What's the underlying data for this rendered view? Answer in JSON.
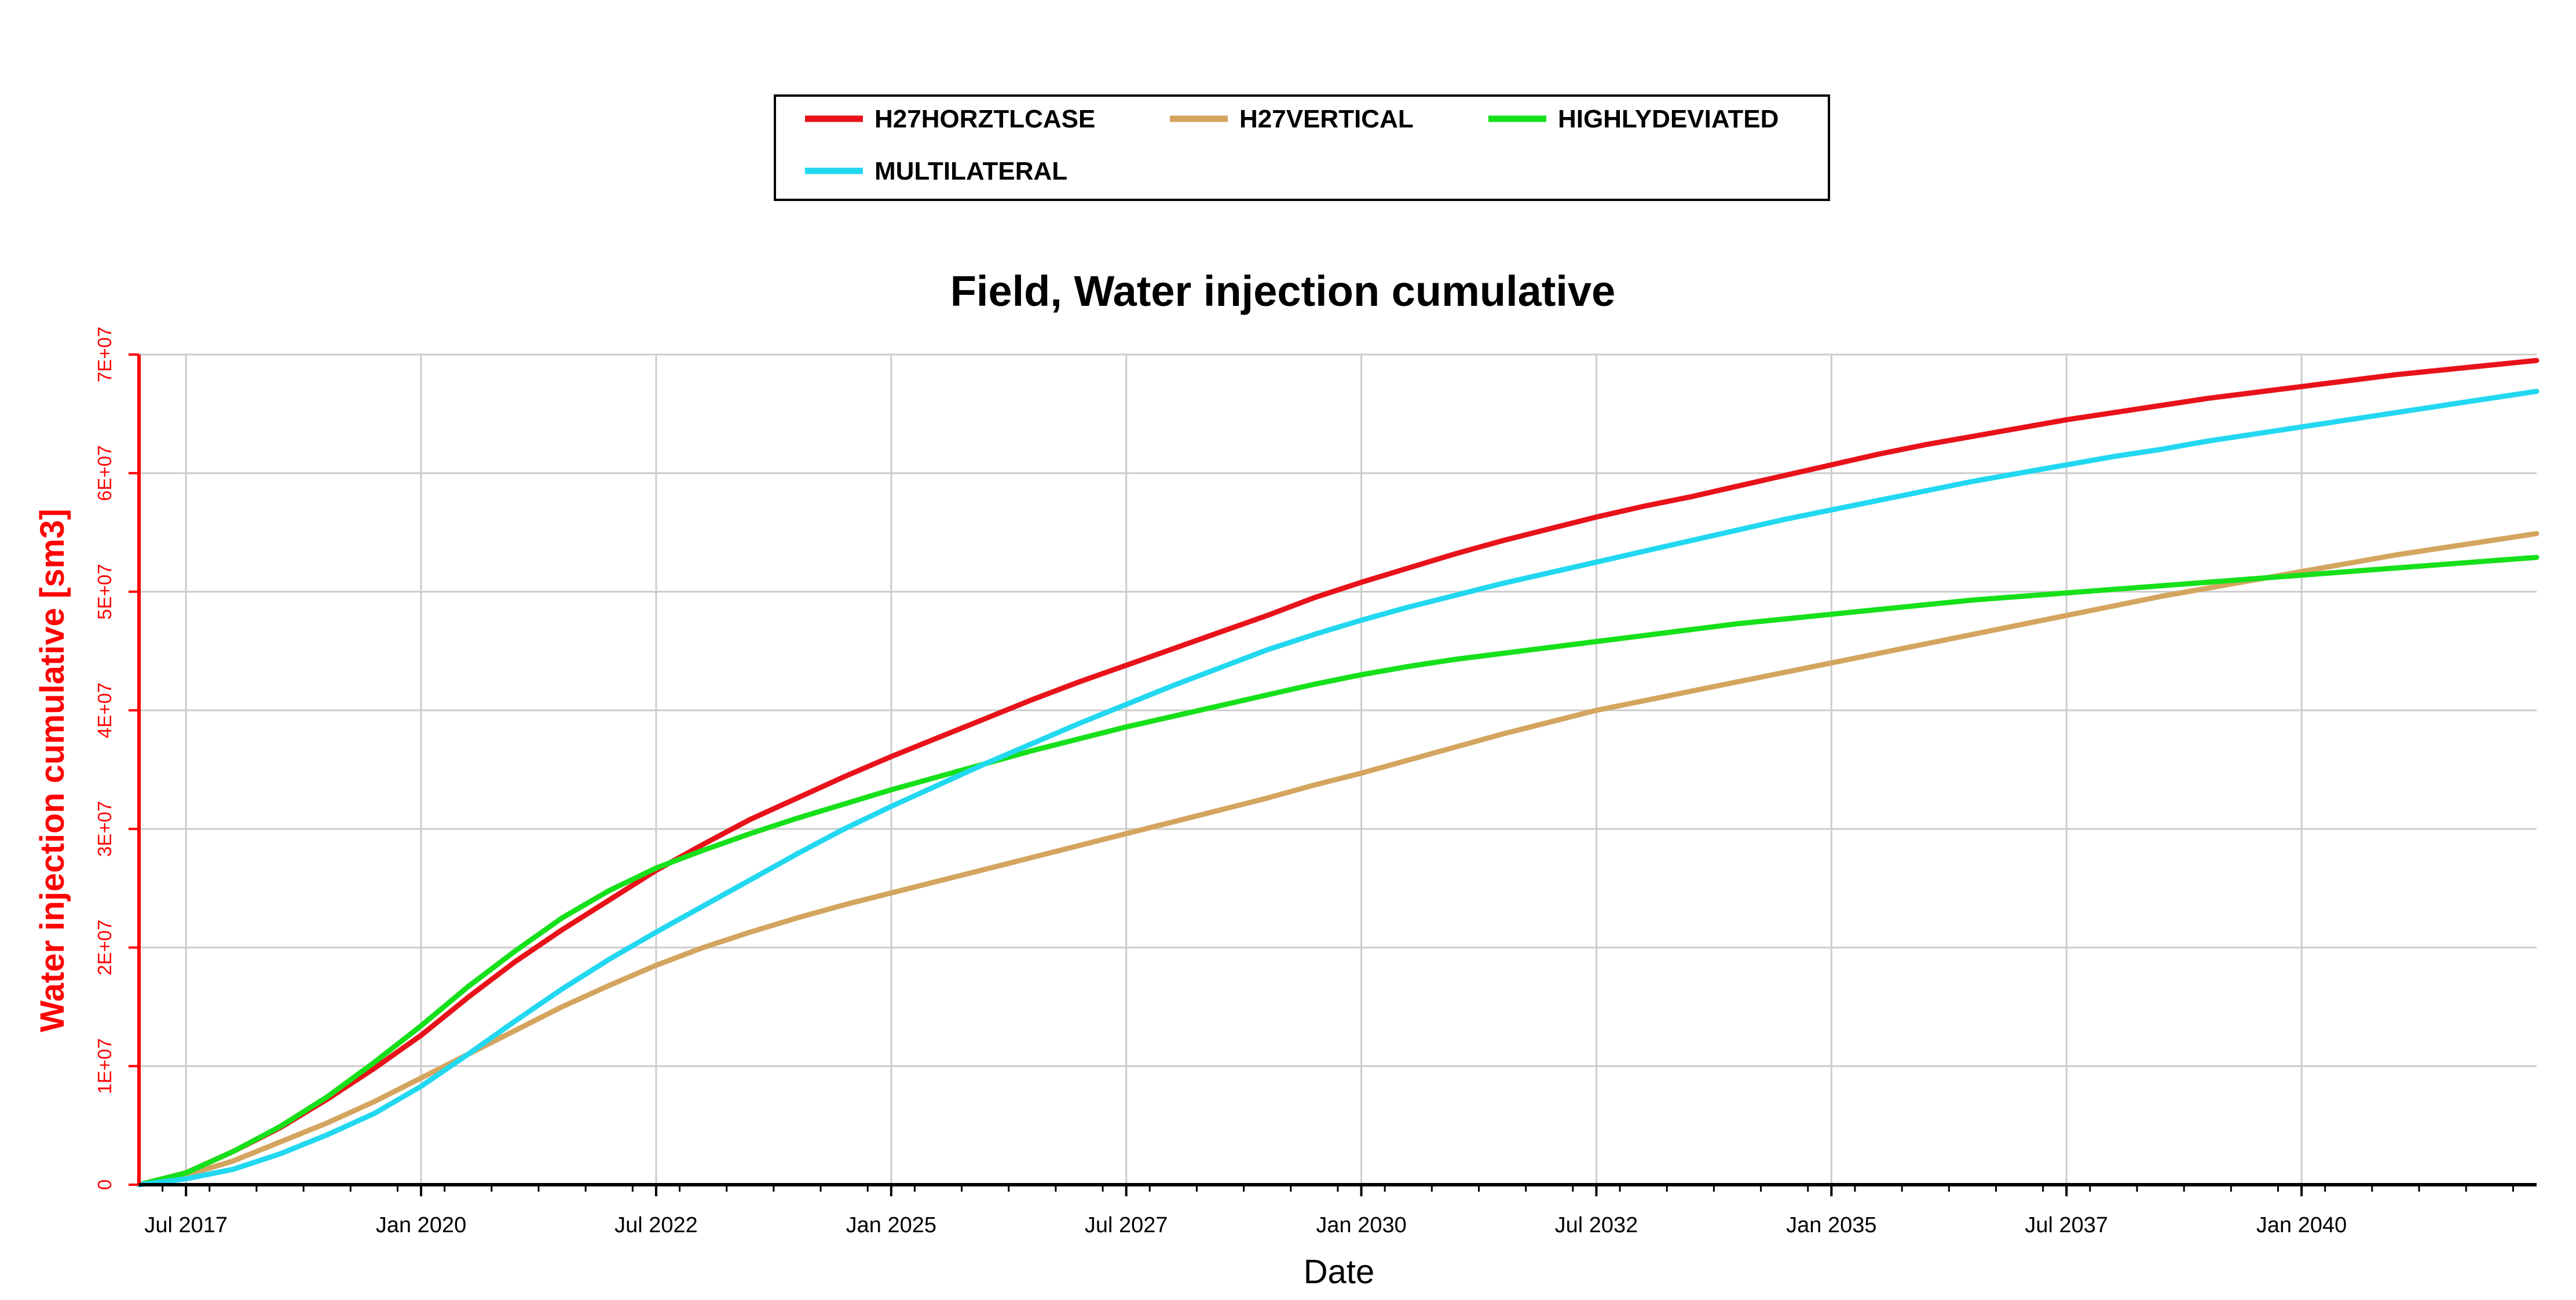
{
  "chart_data": {
    "type": "line",
    "title": "Field, Water injection cumulative",
    "xlabel": "Date",
    "ylabel": "Water injection cumulative [sm3]",
    "axis_color": "#ff0000",
    "grid_color": "#cccccc",
    "grid": true,
    "legend_position": "top-center",
    "x_domain": [
      2017.0,
      2042.5
    ],
    "ylim": [
      0,
      70000000
    ],
    "x_ticks": [
      {
        "label": "Jul 2017",
        "value": 2017.5
      },
      {
        "label": "Jan 2020",
        "value": 2020.0
      },
      {
        "label": "Jul 2022",
        "value": 2022.5
      },
      {
        "label": "Jan 2025",
        "value": 2025.0
      },
      {
        "label": "Jul 2027",
        "value": 2027.5
      },
      {
        "label": "Jan 2030",
        "value": 2030.0
      },
      {
        "label": "Jul 2032",
        "value": 2032.5
      },
      {
        "label": "Jan 2035",
        "value": 2035.0
      },
      {
        "label": "Jul 2037",
        "value": 2037.5
      },
      {
        "label": "Jan 2040",
        "value": 2040.0
      }
    ],
    "y_ticks": [
      {
        "label": "0",
        "value": 0
      },
      {
        "label": "1E+07",
        "value": 10000000
      },
      {
        "label": "2E+07",
        "value": 20000000
      },
      {
        "label": "3E+07",
        "value": 30000000
      },
      {
        "label": "4E+07",
        "value": 40000000
      },
      {
        "label": "5E+07",
        "value": 50000000
      },
      {
        "label": "6E+07",
        "value": 60000000
      },
      {
        "label": "7E+07",
        "value": 70000000
      }
    ],
    "x": [
      2017.0,
      2017.5,
      2018.0,
      2018.5,
      2019.0,
      2019.5,
      2020.0,
      2020.5,
      2021.0,
      2021.5,
      2022.0,
      2022.5,
      2023.0,
      2023.5,
      2024.0,
      2024.5,
      2025.0,
      2025.5,
      2026.0,
      2026.5,
      2027.0,
      2027.5,
      2028.0,
      2028.5,
      2029.0,
      2029.5,
      2030.0,
      2030.5,
      2031.0,
      2031.5,
      2032.0,
      2032.5,
      2033.0,
      2033.5,
      2034.0,
      2034.5,
      2035.0,
      2035.5,
      2036.0,
      2036.5,
      2037.0,
      2037.5,
      2038.0,
      2038.5,
      2039.0,
      2039.5,
      2040.0,
      2040.5,
      2041.0,
      2041.5,
      2042.0,
      2042.5
    ],
    "series": [
      {
        "name": "H27HORZTLCASE",
        "color": "#e8121a",
        "values": [
          0,
          1000000,
          2800000,
          4800000,
          7200000,
          9800000,
          12600000,
          15800000,
          18800000,
          21500000,
          24000000,
          26500000,
          28700000,
          30800000,
          32600000,
          34400000,
          36100000,
          37700000,
          39300000,
          40900000,
          42400000,
          43800000,
          45200000,
          46600000,
          48000000,
          49500000,
          50800000,
          52000000,
          53200000,
          54300000,
          55300000,
          56300000,
          57200000,
          58000000,
          58900000,
          59800000,
          60700000,
          61600000,
          62400000,
          63100000,
          63800000,
          64500000,
          65100000,
          65700000,
          66300000,
          66800000,
          67300000,
          67800000,
          68300000,
          68700000,
          69100000,
          69500000
        ]
      },
      {
        "name": "H27VERTICAL",
        "color": "#d4a55f",
        "values": [
          0,
          800000,
          2000000,
          3600000,
          5200000,
          7000000,
          9000000,
          11000000,
          13000000,
          15000000,
          16800000,
          18500000,
          20000000,
          21300000,
          22500000,
          23600000,
          24600000,
          25600000,
          26600000,
          27600000,
          28600000,
          29600000,
          30600000,
          31600000,
          32600000,
          33700000,
          34700000,
          35800000,
          36900000,
          38000000,
          39000000,
          40000000,
          40800000,
          41600000,
          42400000,
          43200000,
          44000000,
          44800000,
          45600000,
          46400000,
          47200000,
          48000000,
          48800000,
          49600000,
          50300000,
          51000000,
          51700000,
          52400000,
          53100000,
          53700000,
          54300000,
          54900000
        ]
      },
      {
        "name": "HIGHLYDEVIATED",
        "color": "#16e01a",
        "values": [
          0,
          1000000,
          2800000,
          4900000,
          7400000,
          10300000,
          13400000,
          16700000,
          19700000,
          22500000,
          24800000,
          26700000,
          28200000,
          29600000,
          30900000,
          32100000,
          33300000,
          34400000,
          35500000,
          36600000,
          37600000,
          38600000,
          39500000,
          40400000,
          41300000,
          42200000,
          43000000,
          43700000,
          44300000,
          44800000,
          45300000,
          45800000,
          46300000,
          46800000,
          47300000,
          47700000,
          48100000,
          48500000,
          48900000,
          49300000,
          49600000,
          49900000,
          50200000,
          50500000,
          50800000,
          51100000,
          51400000,
          51700000,
          52000000,
          52300000,
          52600000,
          52900000
        ]
      },
      {
        "name": "MULTILATERAL",
        "color": "#22d8f0",
        "values": [
          0,
          500000,
          1300000,
          2600000,
          4200000,
          6000000,
          8300000,
          11000000,
          13800000,
          16500000,
          19000000,
          21300000,
          23500000,
          25700000,
          27900000,
          30000000,
          31900000,
          33700000,
          35500000,
          37200000,
          38900000,
          40500000,
          42100000,
          43600000,
          45100000,
          46400000,
          47600000,
          48700000,
          49700000,
          50700000,
          51600000,
          52500000,
          53400000,
          54300000,
          55200000,
          56100000,
          56900000,
          57700000,
          58500000,
          59300000,
          60000000,
          60700000,
          61400000,
          62000000,
          62700000,
          63300000,
          63900000,
          64500000,
          65100000,
          65700000,
          66300000,
          66900000
        ]
      }
    ]
  }
}
